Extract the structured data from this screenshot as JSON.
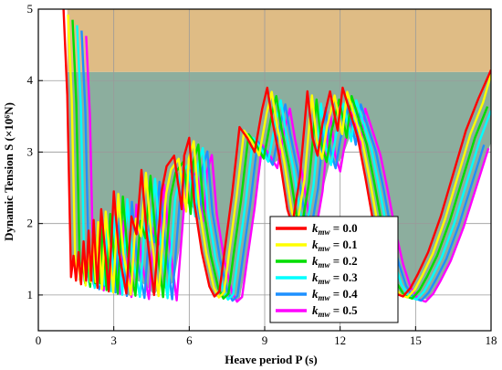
{
  "chart_data": {
    "type": "line",
    "title": "",
    "xlabel": "Heave period P (s)",
    "ylabel": "Dynamic Tension S (×10⁶N)",
    "xlim": [
      0,
      18
    ],
    "ylim": [
      0.5,
      5
    ],
    "xticks": [
      0,
      3,
      6,
      9,
      12,
      15,
      18
    ],
    "yticks": [
      1,
      2,
      3,
      4,
      5
    ],
    "grid": true,
    "legend_position": "bottom-right",
    "legend": {
      "symbol": "k",
      "subscript": "mw",
      "entries": [
        "= 0.0",
        "= 0.1",
        "= 0.2",
        "= 0.3",
        "= 0.4",
        "= 0.5"
      ]
    },
    "regions": [
      {
        "color": "#d9b070",
        "y_from": 4.12,
        "y_to": 5.0,
        "x_from": 1.15,
        "x_to": 18
      },
      {
        "color": "#7fa594",
        "y_to": 4.12,
        "x_from": 1.15,
        "x_to": 18
      }
    ],
    "colors": [
      "#ff0000",
      "#ffff00",
      "#00dd00",
      "#00ffff",
      "#1e90ff",
      "#ff00ff"
    ],
    "series": [
      {
        "name": "k_mw = 0.0",
        "color": "#ff0000",
        "shift": 0.0
      },
      {
        "name": "k_mw = 0.1",
        "color": "#ffff00",
        "shift": 0.18
      },
      {
        "name": "k_mw = 0.2",
        "color": "#00dd00",
        "shift": 0.36
      },
      {
        "name": "k_mw = 0.3",
        "color": "#00ffff",
        "shift": 0.54
      },
      {
        "name": "k_mw = 0.4",
        "color": "#1e90ff",
        "shift": 0.72
      },
      {
        "name": "k_mw = 0.5",
        "color": "#ff00ff",
        "shift": 0.9
      }
    ],
    "base_curve_x": [
      1.0,
      1.15,
      1.3,
      1.4,
      1.5,
      1.6,
      1.7,
      1.8,
      1.9,
      2.0,
      2.1,
      2.2,
      2.35,
      2.5,
      2.8,
      3.0,
      3.2,
      3.5,
      3.7,
      3.9,
      4.1,
      4.3,
      4.6,
      4.9,
      5.1,
      5.4,
      5.7,
      5.8,
      6.0,
      6.2,
      6.5,
      6.8,
      7.0,
      7.2,
      7.4,
      7.7,
      8.0,
      8.3,
      8.6,
      8.9,
      9.1,
      9.3,
      9.6,
      9.9,
      10.1,
      10.4,
      10.7,
      10.9,
      11.1,
      11.3,
      11.6,
      11.9,
      12.1,
      12.4,
      12.7,
      13.0,
      13.3,
      13.6,
      13.9,
      14.2,
      14.5,
      14.8,
      15.1,
      15.5,
      16.0,
      16.5,
      17.0,
      17.5,
      18.0
    ],
    "base_curve_y": [
      5.0,
      3.8,
      1.25,
      1.55,
      1.2,
      1.6,
      1.15,
      1.75,
      1.2,
      1.9,
      1.2,
      2.05,
      1.1,
      2.2,
      1.05,
      2.45,
      1.6,
      1.02,
      2.1,
      1.85,
      2.75,
      1.9,
      1.0,
      2.45,
      2.8,
      2.95,
      2.2,
      2.95,
      3.2,
      2.3,
      1.6,
      1.12,
      0.98,
      1.05,
      1.6,
      2.4,
      3.35,
      3.2,
      3.0,
      3.6,
      3.9,
      3.45,
      2.9,
      2.2,
      1.98,
      2.65,
      3.85,
      3.2,
      2.95,
      3.4,
      3.85,
      3.3,
      3.9,
      3.55,
      3.2,
      2.65,
      2.05,
      1.55,
      1.2,
      1.02,
      0.98,
      1.1,
      1.3,
      1.6,
      2.1,
      2.7,
      3.3,
      3.75,
      4.15
    ]
  }
}
